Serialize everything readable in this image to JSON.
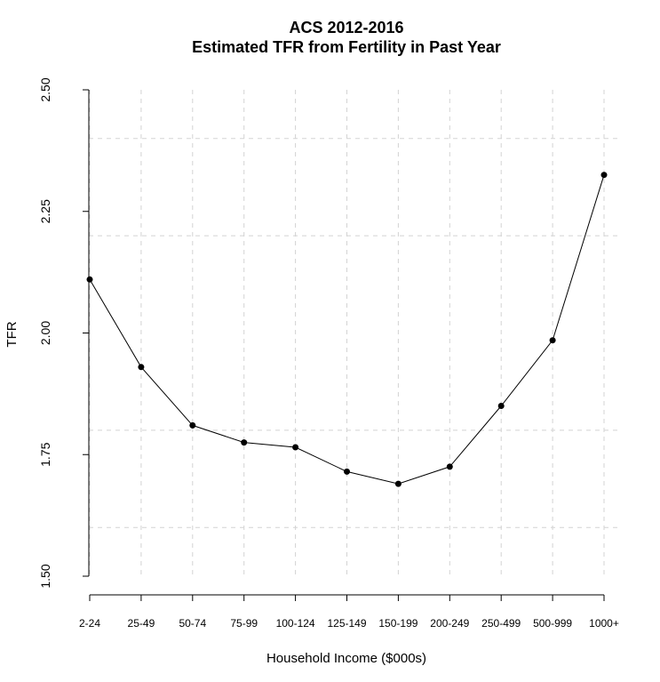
{
  "chart_data": {
    "type": "line",
    "title": [
      "ACS 2012-2016",
      "Estimated TFR from Fertility in Past Year"
    ],
    "xlabel": "Household Income ($000s)",
    "ylabel": "TFR",
    "categories": [
      "2-24",
      "25-49",
      "50-74",
      "75-99",
      "100-124",
      "125-149",
      "150-199",
      "200-249",
      "250-499",
      "500-999",
      "1000+"
    ],
    "values": [
      2.11,
      1.93,
      1.81,
      1.775,
      1.765,
      1.715,
      1.69,
      1.725,
      1.85,
      1.985,
      2.325
    ],
    "ylim": [
      1.5,
      2.5
    ],
    "yticks": [
      1.5,
      1.75,
      2.0,
      2.25,
      2.5
    ],
    "ytick_labels": [
      "1.50",
      "1.75",
      "2.00",
      "2.25",
      "2.50"
    ],
    "grid": true,
    "grid_style": "dashed",
    "colors": {
      "line": "#000000",
      "marker": "#000000",
      "grid": "#d3d3d3"
    }
  }
}
